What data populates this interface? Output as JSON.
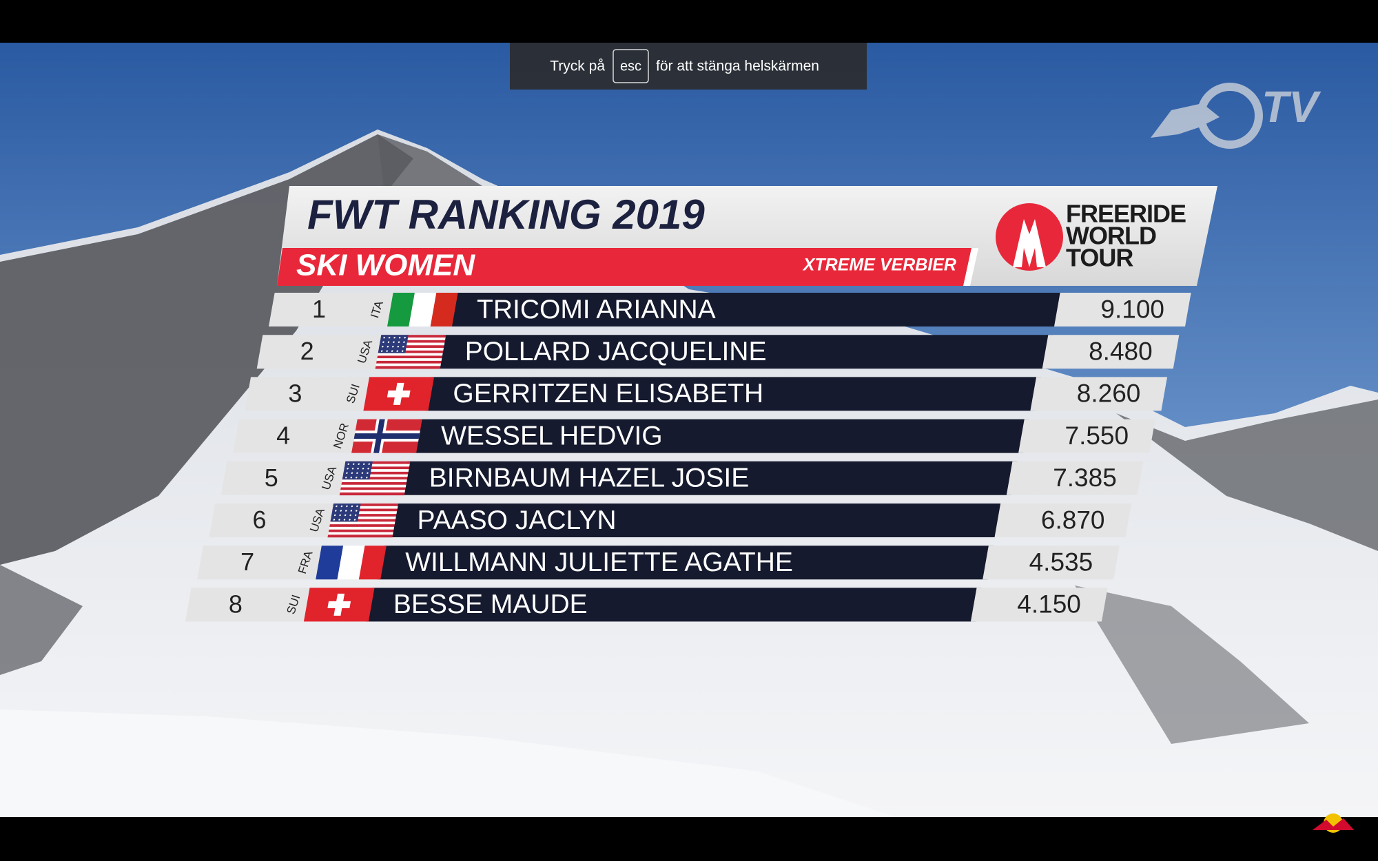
{
  "notification": {
    "before": "Tryck på",
    "key": "esc",
    "after": "för att stänga helskärmen"
  },
  "broadcaster_logo": "TV",
  "graphic": {
    "title": "FWT RANKING 2019",
    "subtitle": "SKI WOMEN",
    "event": "XTREME VERBIER",
    "logo": [
      "FREERIDE",
      "WORLD",
      "TOUR"
    ],
    "rows": [
      {
        "rank": 1,
        "country": "ITA",
        "name": "TRICOMI ARIANNA",
        "score": "9.100"
      },
      {
        "rank": 2,
        "country": "USA",
        "name": "POLLARD JACQUELINE",
        "score": "8.480"
      },
      {
        "rank": 3,
        "country": "SUI",
        "name": "GERRITZEN ELISABETH",
        "score": "8.260"
      },
      {
        "rank": 4,
        "country": "NOR",
        "name": "WESSEL HEDVIG",
        "score": "7.550"
      },
      {
        "rank": 5,
        "country": "USA",
        "name": "BIRNBAUM HAZEL JOSIE",
        "score": "7.385"
      },
      {
        "rank": 6,
        "country": "USA",
        "name": "PAASO JACLYN",
        "score": "6.870"
      },
      {
        "rank": 7,
        "country": "FRA",
        "name": "WILLMANN JULIETTE AGATHE",
        "score": "4.535"
      },
      {
        "rank": 8,
        "country": "SUI",
        "name": "BESSE MAUDE",
        "score": "4.150"
      }
    ]
  }
}
